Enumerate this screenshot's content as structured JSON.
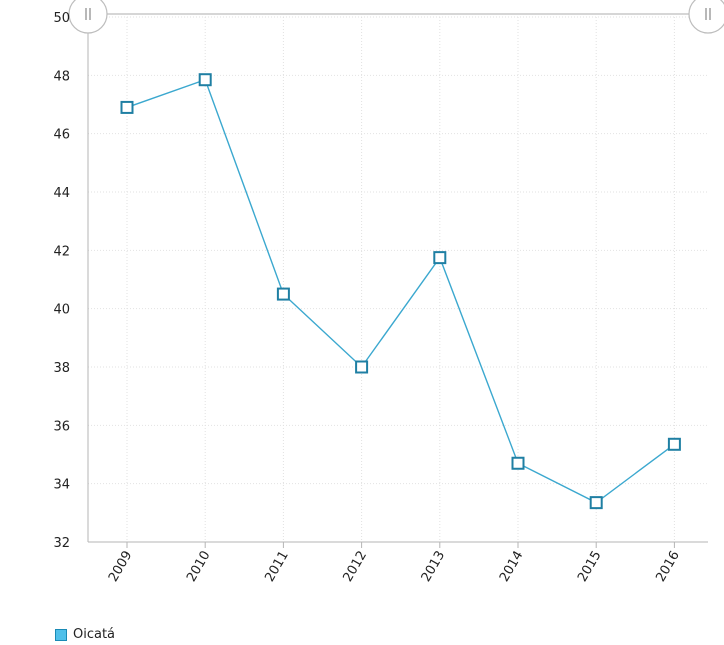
{
  "chart_data": {
    "type": "line",
    "categories": [
      "2009",
      "2010",
      "2011",
      "2012",
      "2013",
      "2014",
      "2015",
      "2016"
    ],
    "series": [
      {
        "name": "Oicatá",
        "values": [
          46.9,
          47.85,
          40.5,
          38.0,
          41.75,
          34.7,
          33.35,
          35.35
        ]
      }
    ],
    "ylim": [
      32,
      50
    ],
    "yticks": [
      32,
      34,
      36,
      38,
      40,
      42,
      44,
      46,
      48,
      50
    ],
    "grid": true,
    "legend_position": "bottom-left",
    "title": "",
    "xlabel": "",
    "ylabel": ""
  },
  "colors": {
    "line": "#3ba8cf",
    "marker_stroke": "#1f7fa3",
    "marker_fill": "#ffffff",
    "grid": "#e2e2e2",
    "axis": "#b5b5b5"
  },
  "slider": {
    "left_handle_icon": "grip-lines-icon",
    "right_handle_icon": "grip-lines-icon"
  }
}
